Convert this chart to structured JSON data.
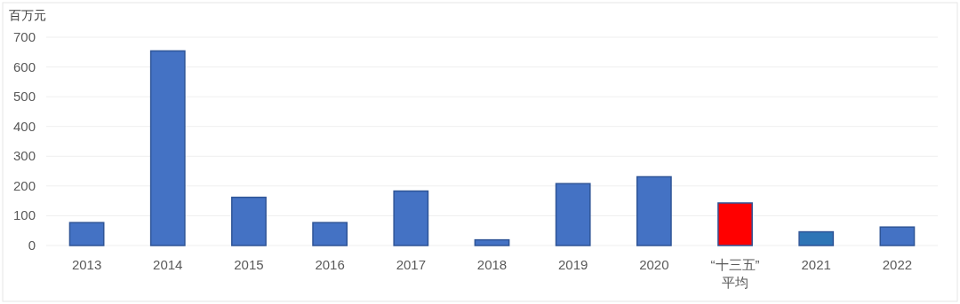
{
  "chart_data": {
    "type": "bar",
    "ylabel": "百万元",
    "categories": [
      "2013",
      "2014",
      "2015",
      "2016",
      "2017",
      "2018",
      "2019",
      "2020",
      "“十三五”\n平均",
      "2021",
      "2022"
    ],
    "values": [
      77,
      654,
      162,
      77,
      183,
      19,
      208,
      231,
      143,
      46,
      62
    ],
    "colors": [
      "#4472c4",
      "#4472c4",
      "#4472c4",
      "#4472c4",
      "#4472c4",
      "#4472c4",
      "#4472c4",
      "#4472c4",
      "#ff0000",
      "#2e75b6",
      "#4472c4"
    ],
    "ylim": [
      0,
      700
    ],
    "yticks": [
      0,
      100,
      200,
      300,
      400,
      500,
      600,
      700
    ],
    "grid": "y"
  }
}
